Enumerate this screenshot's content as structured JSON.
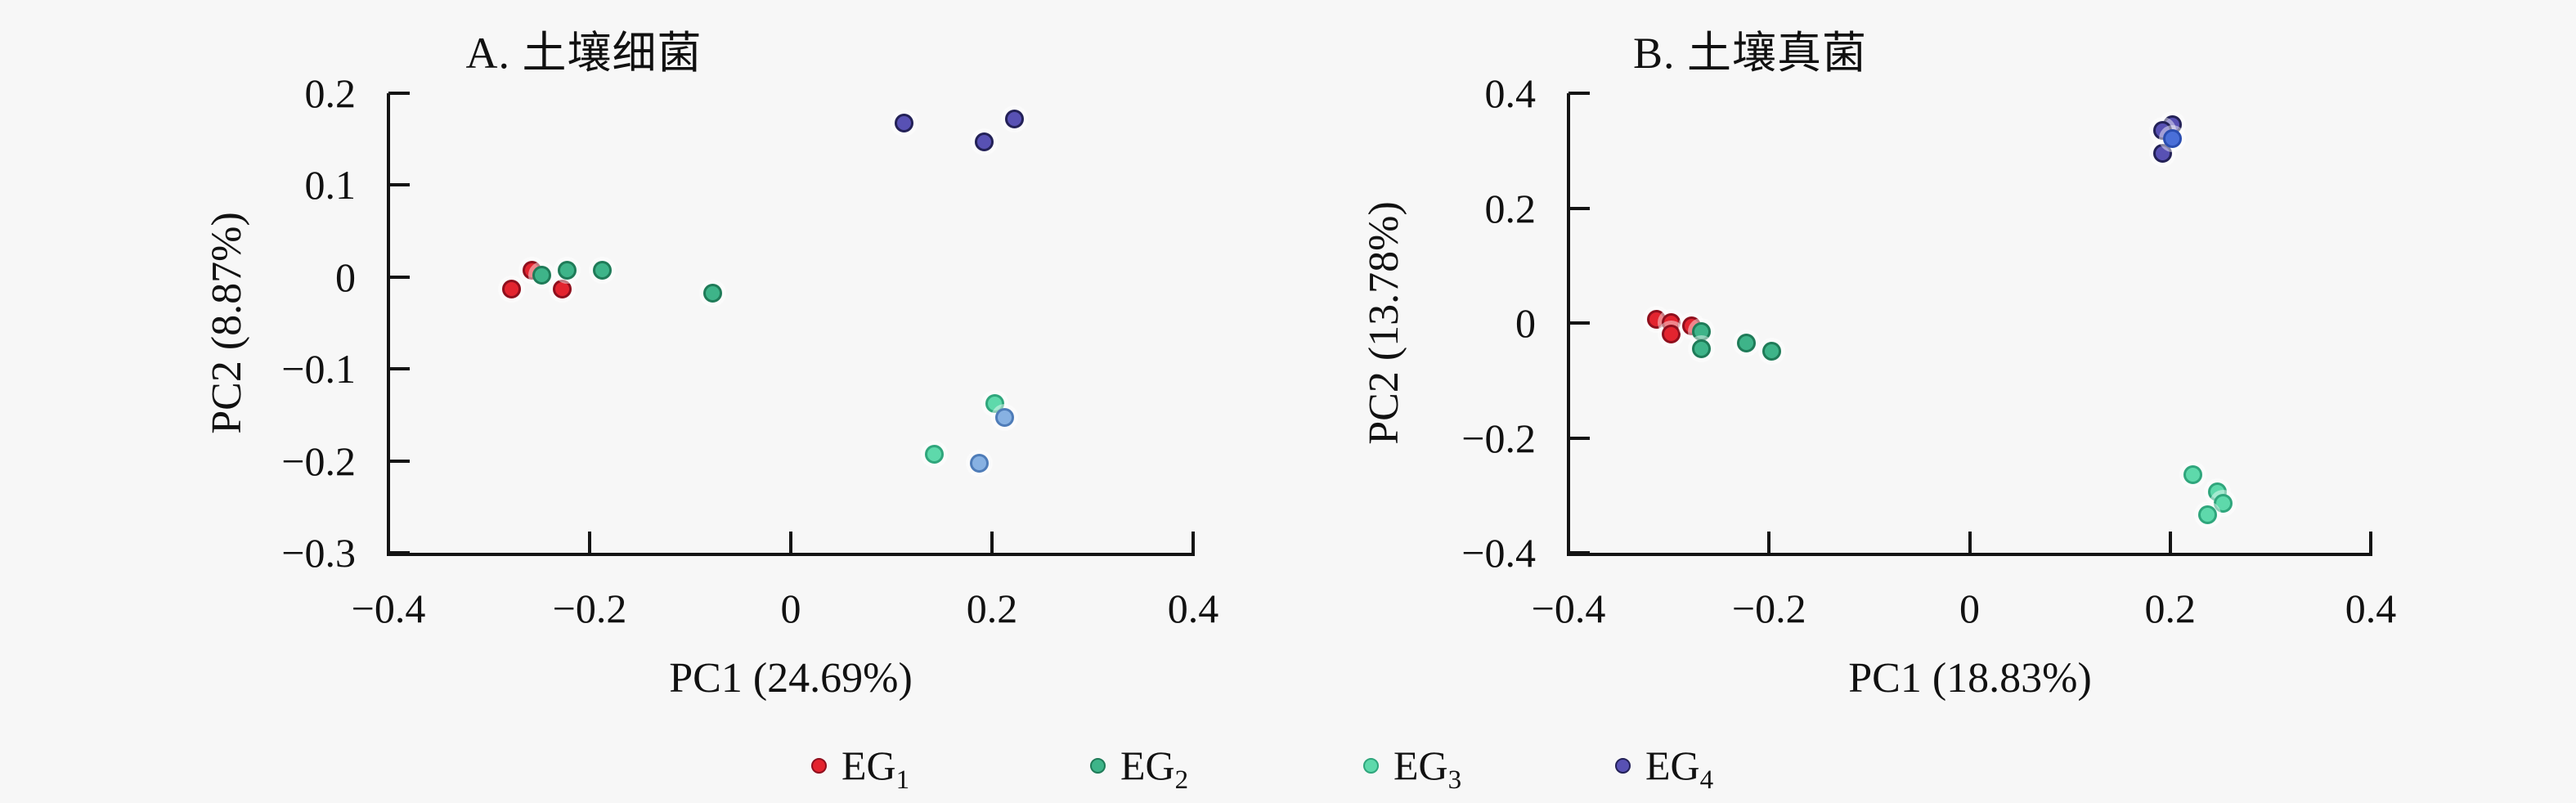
{
  "figure": {
    "background": "#f7f7f7",
    "axis_color": "#141414",
    "legend": {
      "position": "bottom-center",
      "items": [
        {
          "label": "EG",
          "sub": "1",
          "color": "#e3242f",
          "edge": "#8f0f1d"
        },
        {
          "label": "EG",
          "sub": "2",
          "color": "#3eb489",
          "edge": "#1f7b58"
        },
        {
          "label": "EG",
          "sub": "3",
          "color": "#5ed9ab",
          "edge": "#2fa67c"
        },
        {
          "label": "EG",
          "sub": "4",
          "color": "#5851b4",
          "edge": "#232157"
        }
      ]
    }
  },
  "chart_data": [
    {
      "type": "scatter",
      "panel": "A",
      "title": "A. 土壤细菌",
      "xlabel": "PC1 (24.69%)",
      "ylabel": "PC2 (8.87%)",
      "xlim": [
        -0.4,
        0.4
      ],
      "ylim": [
        -0.3,
        0.2
      ],
      "grid": false,
      "x_ticks": {
        "values": [
          -0.4,
          -0.2,
          0,
          0.2,
          0.4
        ],
        "labels": [
          "−0.4",
          "−0.2",
          "0",
          "0.2",
          "0.4"
        ]
      },
      "y_ticks": {
        "values": [
          0.2,
          0.1,
          0,
          -0.1,
          -0.2,
          -0.3
        ],
        "labels": [
          "0.2",
          "0.1",
          "0",
          "−0.1",
          "−0.2",
          "−0.3"
        ]
      },
      "series": [
        {
          "name": "EG1",
          "color": "#e3242f",
          "edge": "#8f0f1d",
          "points": [
            [
              -0.26,
              0.01
            ],
            [
              -0.28,
              -0.01
            ],
            [
              -0.23,
              -0.01
            ]
          ]
        },
        {
          "name": "EG2",
          "color": "#3eb489",
          "edge": "#1f7b58",
          "points": [
            [
              -0.25,
              0.005
            ],
            [
              -0.225,
              0.01
            ],
            [
              -0.19,
              0.01
            ],
            [
              -0.08,
              -0.015
            ]
          ]
        },
        {
          "name": "EG3",
          "color": "#5ed9ab",
          "edge": "#2fa67c",
          "points": [
            [
              0.2,
              -0.135
            ],
            [
              0.14,
              -0.19
            ]
          ]
        },
        {
          "name": "EG3",
          "variant": "light-blue",
          "color": "#87b1e2",
          "edge": "#4e7cb8",
          "points": [
            [
              0.21,
              -0.15
            ],
            [
              0.185,
              -0.2
            ]
          ]
        },
        {
          "name": "EG4",
          "color": "#5851b4",
          "edge": "#232157",
          "points": [
            [
              0.11,
              0.17
            ],
            [
              0.19,
              0.15
            ],
            [
              0.22,
              0.175
            ]
          ]
        }
      ]
    },
    {
      "type": "scatter",
      "panel": "B",
      "title": "B. 土壤真菌",
      "xlabel": "PC1 (18.83%)",
      "ylabel": "PC2 (13.78%)",
      "xlim": [
        -0.4,
        0.4
      ],
      "ylim": [
        -0.4,
        0.4
      ],
      "grid": false,
      "x_ticks": {
        "values": [
          -0.4,
          -0.2,
          0,
          0.2,
          0.4
        ],
        "labels": [
          "−0.4",
          "−0.2",
          "0",
          "0.2",
          "0.4"
        ]
      },
      "y_ticks": {
        "values": [
          0.4,
          0.2,
          0,
          -0.2,
          -0.4
        ],
        "labels": [
          "0.4",
          "0.2",
          "0",
          "−0.2",
          "−0.4"
        ]
      },
      "series": [
        {
          "name": "EG1",
          "color": "#e3242f",
          "edge": "#8f0f1d",
          "points": [
            [
              -0.315,
              0.01
            ],
            [
              -0.3,
              0.005
            ],
            [
              -0.3,
              -0.015
            ],
            [
              -0.28,
              0.0
            ]
          ]
        },
        {
          "name": "EG2",
          "color": "#3eb489",
          "edge": "#1f7b58",
          "points": [
            [
              -0.27,
              -0.01
            ],
            [
              -0.27,
              -0.04
            ],
            [
              -0.225,
              -0.03
            ],
            [
              -0.2,
              -0.045
            ]
          ]
        },
        {
          "name": "EG3",
          "color": "#5ed9ab",
          "edge": "#2fa67c",
          "points": [
            [
              0.22,
              -0.26
            ],
            [
              0.245,
              -0.29
            ],
            [
              0.25,
              -0.31
            ],
            [
              0.235,
              -0.33
            ]
          ]
        },
        {
          "name": "EG4",
          "color": "#5851b4",
          "edge": "#232157",
          "points": [
            [
              0.2,
              0.35
            ],
            [
              0.19,
              0.34
            ],
            [
              0.19,
              0.3
            ]
          ]
        },
        {
          "name": "EG4",
          "variant": "bright-blue",
          "color": "#4a6fd8",
          "edge": "#2a4db0",
          "points": [
            [
              0.2,
              0.325
            ]
          ]
        }
      ]
    }
  ]
}
